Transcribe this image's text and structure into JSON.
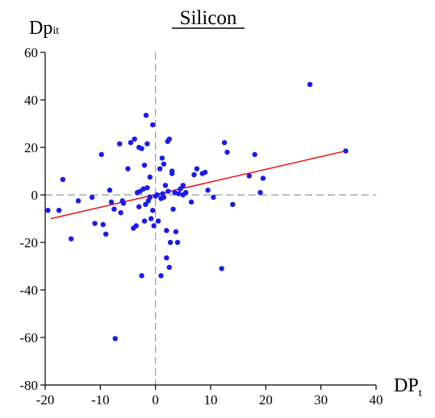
{
  "chart_data": {
    "type": "scatter",
    "title": "Silicon",
    "ylabel": {
      "main": "Dp",
      "sub": "it"
    },
    "xlabel": {
      "main": "DP",
      "sub": "t"
    },
    "xlim": [
      -20,
      40
    ],
    "ylim": [
      -80,
      60
    ],
    "xticks": [
      -20,
      -10,
      0,
      10,
      20,
      30,
      40
    ],
    "yticks": [
      60,
      40,
      20,
      0,
      -20,
      -40,
      -60,
      -80
    ],
    "grid": false,
    "reference_lines": {
      "x": 0,
      "y": 0,
      "style": "dashed",
      "color": "#999999"
    },
    "point_color": "#1a1aee",
    "line_color": "#ee1111",
    "points": [
      [
        -19.5,
        -6.5
      ],
      [
        -17.5,
        -6.5
      ],
      [
        -16.8,
        6.5
      ],
      [
        -15.3,
        -18.5
      ],
      [
        -14.0,
        -2.5
      ],
      [
        -11.5,
        -1.0
      ],
      [
        -11.0,
        -12.0
      ],
      [
        -9.8,
        17.0
      ],
      [
        -9.5,
        -12.5
      ],
      [
        -9.0,
        -16.5
      ],
      [
        -8.3,
        2.0
      ],
      [
        -8.0,
        -3.0
      ],
      [
        -7.5,
        -6.0
      ],
      [
        -7.3,
        -60.5
      ],
      [
        -6.5,
        21.5
      ],
      [
        -6.3,
        -7.5
      ],
      [
        -6.0,
        -2.5
      ],
      [
        -5.8,
        -3.5
      ],
      [
        -5.0,
        11.0
      ],
      [
        -4.5,
        22.0
      ],
      [
        -4.0,
        -14.0
      ],
      [
        -3.8,
        23.5
      ],
      [
        -3.5,
        -13.0
      ],
      [
        -3.3,
        1.0
      ],
      [
        -3.0,
        20.0
      ],
      [
        -3.0,
        -5.0
      ],
      [
        -2.8,
        1.5
      ],
      [
        -2.5,
        -34.0
      ],
      [
        -2.5,
        19.5
      ],
      [
        -2.2,
        2.5
      ],
      [
        -2.0,
        12.5
      ],
      [
        -2.0,
        -11.0
      ],
      [
        -1.8,
        -4.0
      ],
      [
        -1.7,
        33.5
      ],
      [
        -1.5,
        21.5
      ],
      [
        -1.5,
        3.0
      ],
      [
        -1.3,
        -2.5
      ],
      [
        -1.0,
        7.5
      ],
      [
        -1.0,
        -1.0
      ],
      [
        -0.8,
        -10.0
      ],
      [
        -0.5,
        29.5
      ],
      [
        -0.5,
        -6.5
      ],
      [
        -0.3,
        -13.0
      ],
      [
        0.0,
        -0.5
      ],
      [
        0.3,
        0.0
      ],
      [
        0.5,
        -11.0
      ],
      [
        0.8,
        11.0
      ],
      [
        1.0,
        -34.0
      ],
      [
        1.0,
        -1.5
      ],
      [
        1.2,
        15.5
      ],
      [
        1.3,
        0.5
      ],
      [
        1.5,
        -1.0
      ],
      [
        1.5,
        13.0
      ],
      [
        1.8,
        4.0
      ],
      [
        2.0,
        -26.5
      ],
      [
        2.0,
        -15.0
      ],
      [
        2.2,
        22.5
      ],
      [
        2.3,
        1.5
      ],
      [
        2.5,
        23.5
      ],
      [
        2.5,
        -30.5
      ],
      [
        2.7,
        -20.0
      ],
      [
        3.0,
        10.0
      ],
      [
        3.0,
        9.0
      ],
      [
        3.2,
        -6.0
      ],
      [
        3.5,
        1.0
      ],
      [
        3.7,
        -15.5
      ],
      [
        4.0,
        -20.0
      ],
      [
        4.2,
        0.5
      ],
      [
        4.5,
        2.5
      ],
      [
        5.0,
        0.0
      ],
      [
        5.0,
        4.0
      ],
      [
        5.5,
        1.0
      ],
      [
        6.5,
        -3.0
      ],
      [
        7.0,
        8.5
      ],
      [
        7.5,
        11.0
      ],
      [
        8.5,
        9.0
      ],
      [
        9.0,
        9.5
      ],
      [
        9.5,
        2.0
      ],
      [
        10.5,
        -1.0
      ],
      [
        12.0,
        -31.0
      ],
      [
        12.5,
        22.0
      ],
      [
        13.0,
        18.0
      ],
      [
        14.0,
        -4.0
      ],
      [
        17.0,
        8.0
      ],
      [
        18.0,
        17.0
      ],
      [
        19.0,
        1.0
      ],
      [
        19.5,
        7.0
      ],
      [
        28.0,
        46.5
      ],
      [
        34.5,
        18.5
      ]
    ],
    "fit_line": {
      "x": [
        -19.0,
        34.5
      ],
      "y": [
        -10.0,
        18.5
      ]
    }
  }
}
